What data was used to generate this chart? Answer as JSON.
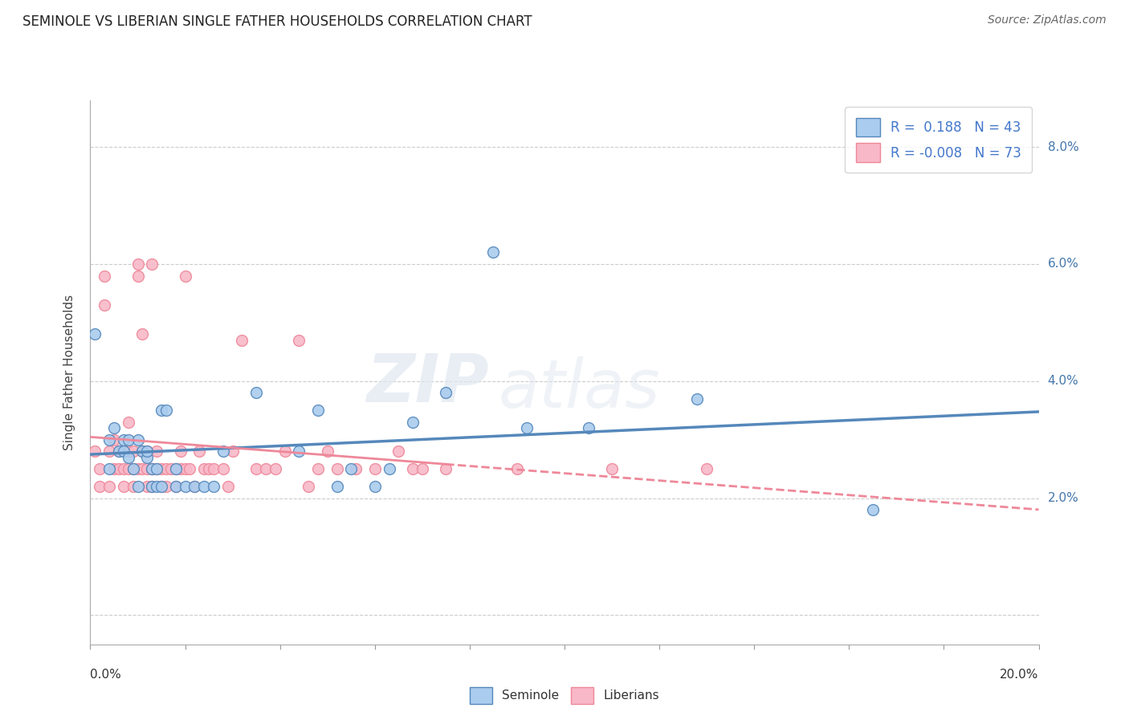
{
  "title": "SEMINOLE VS LIBERIAN SINGLE FATHER HOUSEHOLDS CORRELATION CHART",
  "source": "Source: ZipAtlas.com",
  "ylabel": "Single Father Households",
  "xlim": [
    0.0,
    0.2
  ],
  "ylim": [
    -0.005,
    0.088
  ],
  "seminole_R": "0.188",
  "seminole_N": "43",
  "liberian_R": "-0.008",
  "liberian_N": "73",
  "watermark_zip": "ZIP",
  "watermark_atlas": "atlas",
  "seminole_color": "#aaccee",
  "liberian_color": "#f8b8c8",
  "seminole_line_color": "#5588bb",
  "liberian_line_color": "#ee8899",
  "background_color": "#ffffff",
  "grid_color": "#cccccc",
  "seminole_points": [
    [
      0.001,
      0.048
    ],
    [
      0.004,
      0.03
    ],
    [
      0.004,
      0.025
    ],
    [
      0.005,
      0.032
    ],
    [
      0.006,
      0.028
    ],
    [
      0.007,
      0.03
    ],
    [
      0.007,
      0.028
    ],
    [
      0.008,
      0.027
    ],
    [
      0.008,
      0.03
    ],
    [
      0.009,
      0.025
    ],
    [
      0.01,
      0.022
    ],
    [
      0.01,
      0.03
    ],
    [
      0.011,
      0.028
    ],
    [
      0.012,
      0.027
    ],
    [
      0.012,
      0.028
    ],
    [
      0.013,
      0.025
    ],
    [
      0.013,
      0.022
    ],
    [
      0.014,
      0.025
    ],
    [
      0.014,
      0.022
    ],
    [
      0.015,
      0.022
    ],
    [
      0.015,
      0.035
    ],
    [
      0.016,
      0.035
    ],
    [
      0.018,
      0.025
    ],
    [
      0.018,
      0.022
    ],
    [
      0.02,
      0.022
    ],
    [
      0.022,
      0.022
    ],
    [
      0.024,
      0.022
    ],
    [
      0.026,
      0.022
    ],
    [
      0.028,
      0.028
    ],
    [
      0.035,
      0.038
    ],
    [
      0.044,
      0.028
    ],
    [
      0.048,
      0.035
    ],
    [
      0.052,
      0.022
    ],
    [
      0.055,
      0.025
    ],
    [
      0.06,
      0.022
    ],
    [
      0.063,
      0.025
    ],
    [
      0.068,
      0.033
    ],
    [
      0.075,
      0.038
    ],
    [
      0.085,
      0.062
    ],
    [
      0.092,
      0.032
    ],
    [
      0.105,
      0.032
    ],
    [
      0.128,
      0.037
    ],
    [
      0.165,
      0.018
    ]
  ],
  "liberian_points": [
    [
      0.001,
      0.028
    ],
    [
      0.002,
      0.025
    ],
    [
      0.002,
      0.022
    ],
    [
      0.003,
      0.058
    ],
    [
      0.003,
      0.053
    ],
    [
      0.004,
      0.028
    ],
    [
      0.004,
      0.022
    ],
    [
      0.005,
      0.025
    ],
    [
      0.005,
      0.03
    ],
    [
      0.006,
      0.028
    ],
    [
      0.006,
      0.025
    ],
    [
      0.007,
      0.025
    ],
    [
      0.007,
      0.022
    ],
    [
      0.008,
      0.028
    ],
    [
      0.008,
      0.025
    ],
    [
      0.008,
      0.033
    ],
    [
      0.009,
      0.028
    ],
    [
      0.009,
      0.025
    ],
    [
      0.009,
      0.022
    ],
    [
      0.01,
      0.025
    ],
    [
      0.01,
      0.058
    ],
    [
      0.01,
      0.06
    ],
    [
      0.011,
      0.048
    ],
    [
      0.011,
      0.028
    ],
    [
      0.011,
      0.025
    ],
    [
      0.012,
      0.022
    ],
    [
      0.012,
      0.028
    ],
    [
      0.012,
      0.025
    ],
    [
      0.013,
      0.025
    ],
    [
      0.013,
      0.022
    ],
    [
      0.013,
      0.06
    ],
    [
      0.013,
      0.025
    ],
    [
      0.014,
      0.028
    ],
    [
      0.014,
      0.025
    ],
    [
      0.015,
      0.022
    ],
    [
      0.015,
      0.025
    ],
    [
      0.016,
      0.025
    ],
    [
      0.016,
      0.022
    ],
    [
      0.017,
      0.025
    ],
    [
      0.018,
      0.025
    ],
    [
      0.018,
      0.022
    ],
    [
      0.019,
      0.028
    ],
    [
      0.019,
      0.025
    ],
    [
      0.02,
      0.058
    ],
    [
      0.02,
      0.025
    ],
    [
      0.021,
      0.025
    ],
    [
      0.022,
      0.022
    ],
    [
      0.023,
      0.028
    ],
    [
      0.024,
      0.025
    ],
    [
      0.025,
      0.025
    ],
    [
      0.026,
      0.025
    ],
    [
      0.028,
      0.025
    ],
    [
      0.029,
      0.022
    ],
    [
      0.03,
      0.028
    ],
    [
      0.032,
      0.047
    ],
    [
      0.035,
      0.025
    ],
    [
      0.037,
      0.025
    ],
    [
      0.039,
      0.025
    ],
    [
      0.041,
      0.028
    ],
    [
      0.044,
      0.047
    ],
    [
      0.046,
      0.022
    ],
    [
      0.048,
      0.025
    ],
    [
      0.05,
      0.028
    ],
    [
      0.052,
      0.025
    ],
    [
      0.056,
      0.025
    ],
    [
      0.06,
      0.025
    ],
    [
      0.065,
      0.028
    ],
    [
      0.068,
      0.025
    ],
    [
      0.07,
      0.025
    ],
    [
      0.075,
      0.025
    ],
    [
      0.09,
      0.025
    ],
    [
      0.11,
      0.025
    ],
    [
      0.13,
      0.025
    ]
  ]
}
